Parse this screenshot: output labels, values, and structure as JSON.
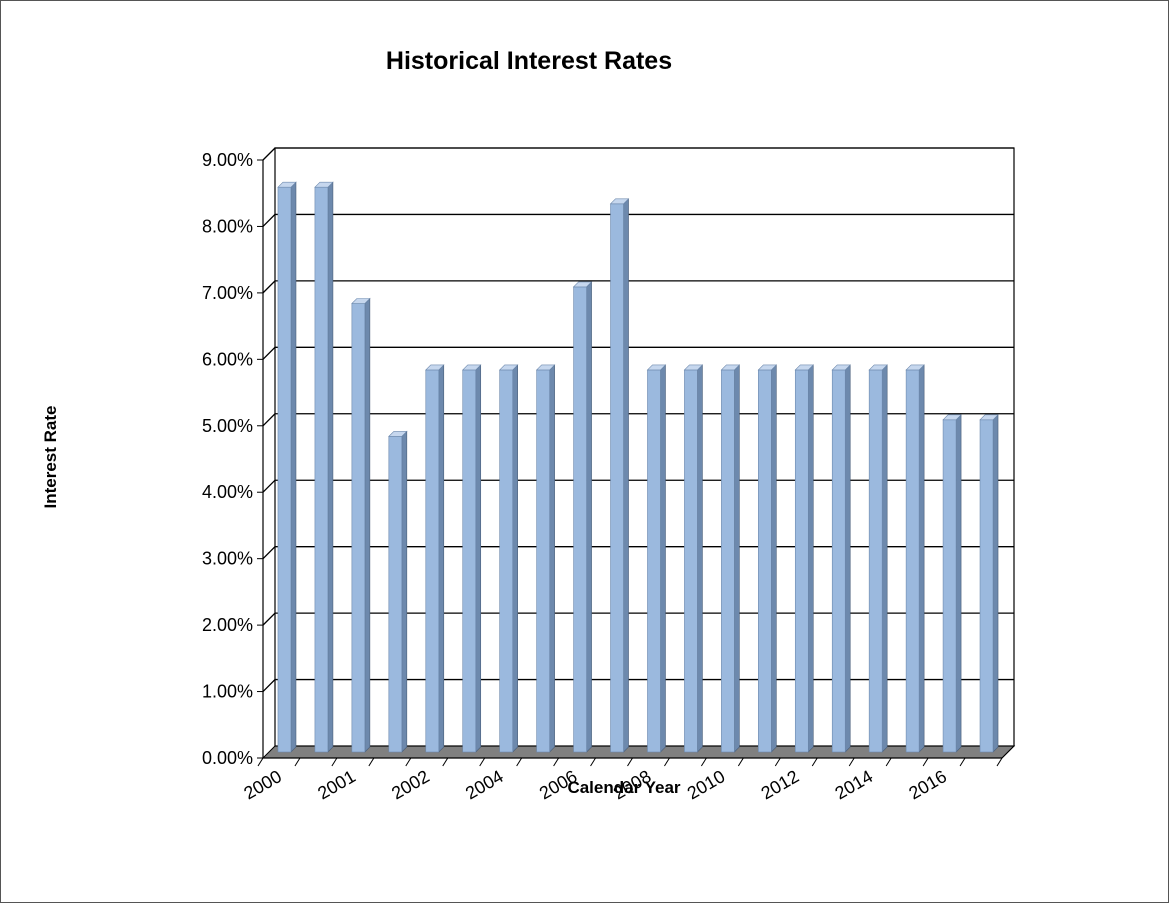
{
  "chart_data": {
    "type": "bar",
    "title": "Historical Interest Rates",
    "xlabel": "Calendar Year",
    "ylabel": "Interest Rate",
    "ylim": [
      0,
      0.09
    ],
    "y_ticks": [
      "0.00%",
      "1.00%",
      "2.00%",
      "3.00%",
      "4.00%",
      "5.00%",
      "6.00%",
      "7.00%",
      "8.00%",
      "9.00%"
    ],
    "x_tick_labels": [
      "2000",
      "2001",
      "2002",
      "2004",
      "2006",
      "2008",
      "2010",
      "2012",
      "2014",
      "2016"
    ],
    "values": [
      0.085,
      0.085,
      0.0675,
      0.0475,
      0.0575,
      0.0575,
      0.0575,
      0.0575,
      0.07,
      0.0825,
      0.0575,
      0.0575,
      0.0575,
      0.0575,
      0.0575,
      0.0575,
      0.0575,
      0.0575,
      0.05,
      0.05
    ],
    "grid": true,
    "legend": "none",
    "colors": {
      "bar_front": "#9bb9de",
      "bar_side": "#6d89ad",
      "bar_top": "#c6d7ee",
      "floor": "#808080",
      "gridline": "#000000"
    }
  }
}
